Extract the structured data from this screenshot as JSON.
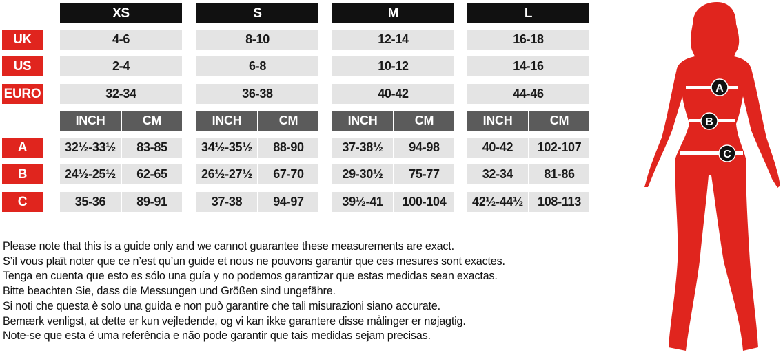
{
  "colors": {
    "accent_red": "#e0251e",
    "header_black": "#111111",
    "unit_header_gray": "#5b5b5b",
    "cell_gray": "#e4e4e4"
  },
  "sizes": [
    "XS",
    "S",
    "M",
    "L"
  ],
  "unit_labels": {
    "inch": "INCH",
    "cm": "CM"
  },
  "size_rows": [
    {
      "label": "UK",
      "values": [
        "4-6",
        "8-10",
        "12-14",
        "16-18"
      ]
    },
    {
      "label": "US",
      "values": [
        "2-4",
        "6-8",
        "10-12",
        "14-16"
      ]
    },
    {
      "label": "EURO",
      "values": [
        "32-34",
        "36-38",
        "40-42",
        "44-46"
      ]
    }
  ],
  "measure_rows": [
    {
      "label": "A",
      "values": [
        [
          "32½-33½",
          "83-85"
        ],
        [
          "34½-35½",
          "88-90"
        ],
        [
          "37-38½",
          "94-98"
        ],
        [
          "40-42",
          "102-107"
        ]
      ]
    },
    {
      "label": "B",
      "values": [
        [
          "24½-25½",
          "62-65"
        ],
        [
          "26½-27½",
          "67-70"
        ],
        [
          "29-30½",
          "75-77"
        ],
        [
          "32-34",
          "81-86"
        ]
      ]
    },
    {
      "label": "C",
      "values": [
        [
          "35-36",
          "89-91"
        ],
        [
          "37-38",
          "94-97"
        ],
        [
          "39½-41",
          "100-104"
        ],
        [
          "42½-44½",
          "108-113"
        ]
      ]
    }
  ],
  "figure": {
    "icon": "female-silhouette-icon",
    "markers": [
      "A",
      "B",
      "C"
    ]
  },
  "notes": [
    "Please note that this is a guide only and we cannot guarantee these measurements are exact.",
    "S’il vous plaît noter que ce n’est qu’un guide et nous ne pouvons garantir que ces mesures sont exactes.",
    "Tenga en cuenta que esto es sólo una guía y no podemos garantizar que estas medidas sean exactas.",
    "Bitte beachten Sie, dass die Messungen und Größen sind ungefähre.",
    "Si noti che questa è solo una guida e non può garantire che tali misurazioni siano accurate.",
    "Bemærk venligst, at dette er kun vejledende, og vi kan ikke garantere disse målinger er nøjagtig.",
    "Note-se que esta é uma referência e não pode garantir que tais medidas sejam precisas."
  ]
}
